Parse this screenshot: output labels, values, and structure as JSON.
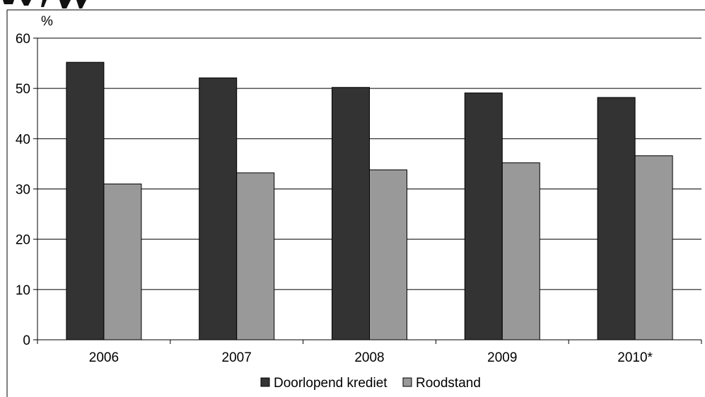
{
  "chart_data": {
    "type": "bar",
    "unit_label": "%",
    "categories": [
      "2006",
      "2007",
      "2008",
      "2009",
      "2010*"
    ],
    "series": [
      {
        "name": "Doorlopend krediet",
        "values": [
          55.2,
          52.1,
          50.2,
          49.1,
          48.2
        ],
        "color": "#333333"
      },
      {
        "name": "Roodstand",
        "values": [
          31.0,
          33.2,
          33.8,
          35.2,
          36.6
        ],
        "color": "#999999"
      }
    ],
    "ylim": [
      0,
      60
    ],
    "yticks": [
      0,
      10,
      20,
      30,
      40,
      50,
      60
    ],
    "grid": true,
    "legend_position": "bottom"
  }
}
